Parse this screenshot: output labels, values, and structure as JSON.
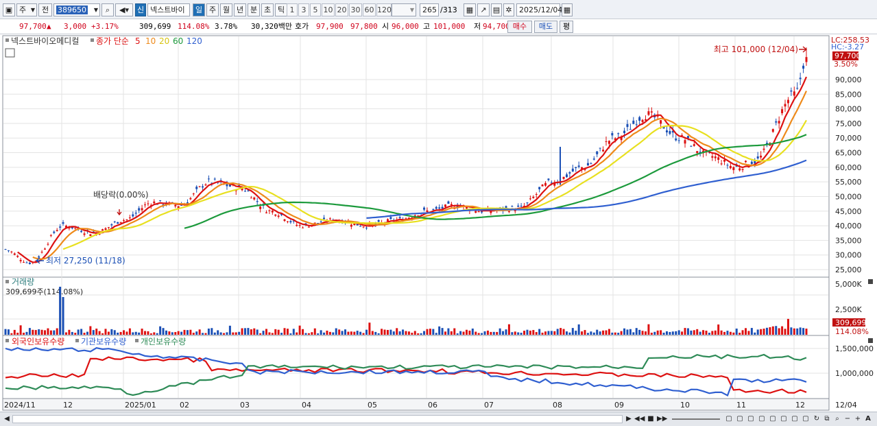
{
  "toolbar": {
    "market": "주",
    "prev": "전",
    "code": "389650",
    "badge_new": "신",
    "name": "넥스트바이",
    "periods": [
      "일",
      "주",
      "월",
      "년",
      "분",
      "초",
      "틱"
    ],
    "active_period": "일",
    "intervals": [
      "1",
      "3",
      "5",
      "10",
      "20",
      "30",
      "60",
      "120"
    ],
    "count": "265",
    "total": "/313",
    "date": "2025/12/04"
  },
  "quote": {
    "price": "97,700",
    "arrow": "▲",
    "change": "3,000",
    "change_pct": "+3.17%",
    "volume": "309,699",
    "vol_ratio": "114.08%",
    "turnover_pct": "3.78%",
    "amount": "30,320백만",
    "bid_label": "호가",
    "ask_price": "97,900",
    "bid_price": "97,800",
    "open_label": "시",
    "open": "96,000",
    "high_label": "고",
    "high": "101,000",
    "low_label": "저",
    "low": "94,700",
    "buy": "매수",
    "sell": "매도",
    "avg": "평"
  },
  "legend": {
    "stock_name": "넥스트바이오메디컬",
    "indicator": "종가 단순",
    "ma_periods": [
      "5",
      "10",
      "20",
      "60",
      "120"
    ],
    "ma_colors": [
      "#dd1111",
      "#ee8a1a",
      "#e8e020",
      "#1c9a3c",
      "#2f5fd0"
    ]
  },
  "price_panel": {
    "lc": "LC:258.53",
    "hc": "HC:-3.27",
    "current": "97,700",
    "pct": "3.50%",
    "ticks": [
      "90,000",
      "85,000",
      "80,000",
      "75,000",
      "70,000",
      "65,000",
      "60,000",
      "55,000",
      "50,000",
      "45,000",
      "40,000",
      "35,000",
      "30,000",
      "25,000"
    ],
    "high_note": "최고 101,000 (12/04)",
    "low_note": "최저 27,250 (11/18)",
    "dividend_note": "배당락(0.00%)"
  },
  "volume_panel": {
    "title": "거래량",
    "current": "309,699주(114.08%)",
    "ticks": [
      "5,000K",
      "2,500K"
    ],
    "badge_value": "309,699",
    "badge_pct": "114.08%"
  },
  "holdings_panel": {
    "series": [
      "외국인보유수량",
      "기관보유수량",
      "개인보유수량"
    ],
    "series_colors": [
      "#dd1111",
      "#2f5fd0",
      "#2e8b57"
    ],
    "ticks": [
      "1,500,000",
      "1,000,000"
    ]
  },
  "x_axis": {
    "labels": [
      "2024/11",
      "12",
      "2025/01",
      "02",
      "03",
      "04",
      "05",
      "06",
      "07",
      "08",
      "09",
      "10",
      "11",
      "12"
    ],
    "right_label": "12/04"
  },
  "colors": {
    "up": "#dd1111",
    "down": "#1a4fb5",
    "grid": "#e3e3e3"
  },
  "chart_data": {
    "type": "candlestick",
    "price_axis": {
      "min": 25000,
      "max": 95000
    },
    "price_close_path": [
      [
        "2024/11",
        32000
      ],
      [
        "2024/11/18",
        27250
      ],
      [
        "12",
        40000
      ],
      [
        "12mid",
        37500
      ],
      [
        "2025/01",
        42000
      ],
      [
        "01mid",
        48000
      ],
      [
        "02",
        47000
      ],
      [
        "02mid",
        55000
      ],
      [
        "03",
        53000
      ],
      [
        "03mid",
        45000
      ],
      [
        "04",
        40000
      ],
      [
        "04mid",
        42000
      ],
      [
        "05",
        40000
      ],
      [
        "05mid",
        42000
      ],
      [
        "06",
        45000
      ],
      [
        "06mid",
        47000
      ],
      [
        "07",
        45000
      ],
      [
        "07mid",
        46000
      ],
      [
        "08",
        55000
      ],
      [
        "08mid",
        60000
      ],
      [
        "09",
        70000
      ],
      [
        "09mid",
        78000
      ],
      [
        "10",
        70000
      ],
      [
        "10mid",
        64000
      ],
      [
        "11",
        60000
      ],
      [
        "11mid",
        62000
      ],
      [
        "12",
        85000
      ],
      [
        "12/04",
        97700
      ]
    ],
    "moving_averages": [
      "5",
      "10",
      "20",
      "60",
      "120"
    ],
    "volume_spike_label": "거래량"
  }
}
